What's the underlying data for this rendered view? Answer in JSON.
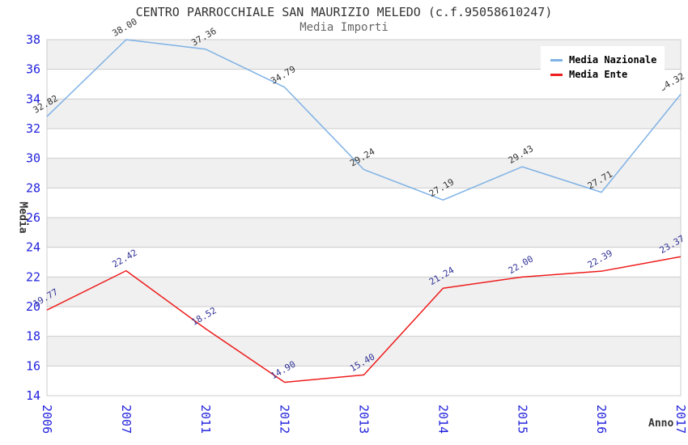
{
  "chart_data": {
    "type": "line",
    "title": "CENTRO PARROCCHIALE SAN MAURIZIO MELEDO (c.f.95058610247)",
    "subtitle": "Media Importi",
    "xlabel": "Anno",
    "ylabel": "Media",
    "categories": [
      "2006",
      "2007",
      "2011",
      "2012",
      "2013",
      "2014",
      "2015",
      "2016",
      "2017"
    ],
    "series": [
      {
        "name": "Media Nazionale",
        "color": "#7fb2e5",
        "label_color": "#333333",
        "values": [
          32.82,
          38.0,
          37.36,
          34.79,
          29.24,
          27.19,
          29.43,
          27.71,
          34.32
        ]
      },
      {
        "name": "Media Ente",
        "color": "#ee1c1c",
        "label_color": "#333399",
        "values": [
          19.77,
          22.42,
          18.52,
          14.9,
          15.4,
          21.24,
          22.0,
          22.39,
          23.37
        ]
      }
    ],
    "ylim": [
      14,
      38
    ],
    "ytick_step": 2,
    "grid": true,
    "value_decimals": 2,
    "legend_position": "top-right",
    "style": {
      "band_color": "#f0f0f0",
      "grid_color": "#cccccc",
      "frame_color": "#cccccc",
      "tick_label_color": "#2222dd",
      "title_color": "#333333",
      "subtitle_color": "#666666",
      "axis_title_color": "#333333",
      "background": "#ffffff"
    }
  },
  "legend": {
    "items": [
      {
        "label": "Media Nazionale",
        "color": "#7fb2e5"
      },
      {
        "label": "Media Ente",
        "color": "#ee1c1c"
      }
    ]
  }
}
